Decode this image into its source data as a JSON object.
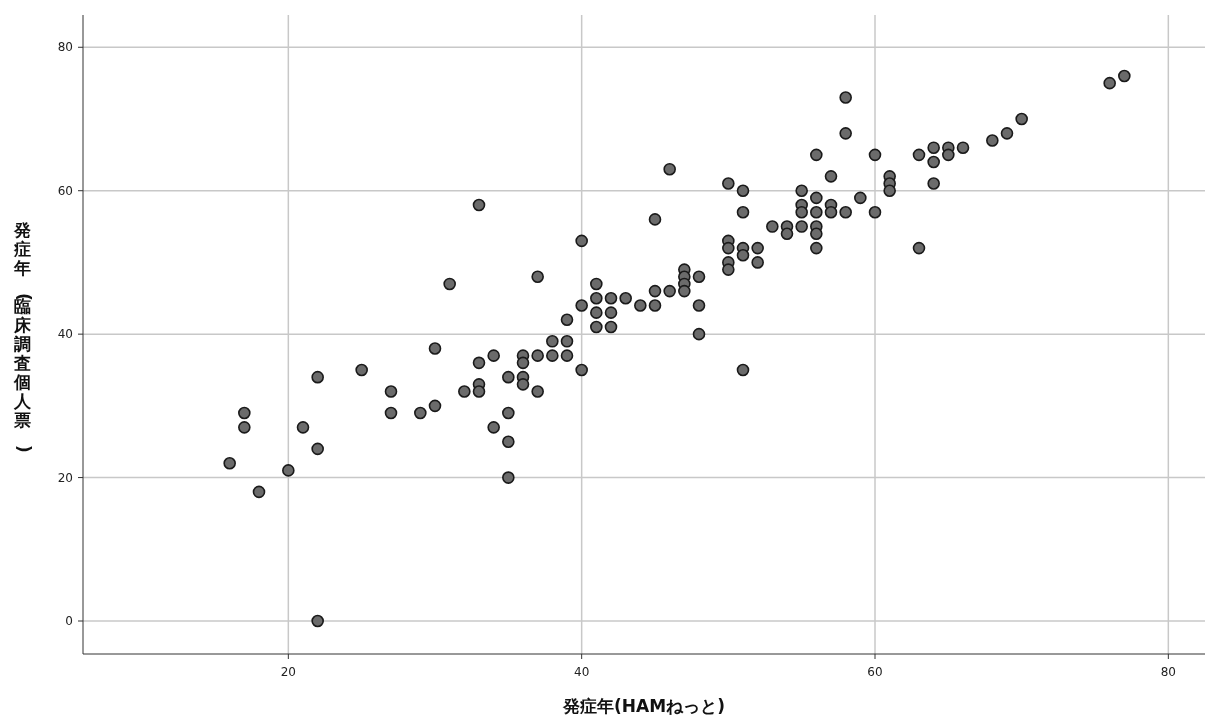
{
  "chart_data": {
    "type": "scatter",
    "xlabel": "発症年(HAMねっと)",
    "ylabel": "発症年(臨床調査個人票)",
    "xlim": [
      6,
      82.5
    ],
    "ylim": [
      -4.6,
      84.5
    ],
    "xticks": [
      20,
      40,
      60,
      80
    ],
    "yticks": [
      0,
      20,
      40,
      60,
      80
    ],
    "grid": true,
    "marker": "circle",
    "series": [
      {
        "color": "#6b6b6b",
        "x": [
          16,
          17,
          17,
          18,
          20,
          21,
          22,
          22,
          22,
          25,
          27,
          27,
          29,
          30,
          30,
          31,
          32,
          33,
          33,
          33,
          33,
          34,
          34,
          35,
          35,
          35,
          35,
          36,
          36,
          36,
          36,
          37,
          37,
          37,
          38,
          38,
          39,
          39,
          39,
          40,
          40,
          40,
          41,
          41,
          41,
          41,
          42,
          42,
          42,
          43,
          44,
          45,
          45,
          45,
          46,
          46,
          47,
          47,
          47,
          47,
          48,
          48,
          48,
          50,
          50,
          50,
          50,
          50,
          51,
          51,
          51,
          51,
          51,
          52,
          52,
          53,
          54,
          54,
          55,
          55,
          55,
          55,
          56,
          56,
          56,
          56,
          56,
          56,
          57,
          57,
          57,
          58,
          58,
          58,
          59,
          60,
          60,
          61,
          61,
          61,
          63,
          63,
          64,
          64,
          64,
          65,
          65,
          66,
          68,
          69,
          70,
          76,
          77
        ],
        "values": [
          22,
          29,
          27,
          18,
          21,
          27,
          34,
          24,
          0,
          35,
          32,
          29,
          29,
          38,
          30,
          47,
          32,
          58,
          36,
          33,
          32,
          37,
          27,
          34,
          29,
          25,
          20,
          37,
          36,
          34,
          33,
          48,
          37,
          32,
          39,
          37,
          42,
          39,
          37,
          53,
          44,
          35,
          47,
          45,
          43,
          41,
          45,
          43,
          41,
          45,
          44,
          56,
          46,
          44,
          63,
          46,
          49,
          48,
          47,
          46,
          48,
          44,
          40,
          61,
          53,
          52,
          50,
          49,
          60,
          57,
          52,
          51,
          35,
          52,
          50,
          55,
          55,
          54,
          60,
          58,
          57,
          55,
          65,
          59,
          57,
          55,
          54,
          52,
          62,
          58,
          57,
          73,
          68,
          57,
          59,
          65,
          57,
          62,
          61,
          60,
          65,
          52,
          66,
          64,
          61,
          66,
          65,
          66,
          67,
          68,
          70,
          75,
          76
        ]
      }
    ]
  }
}
